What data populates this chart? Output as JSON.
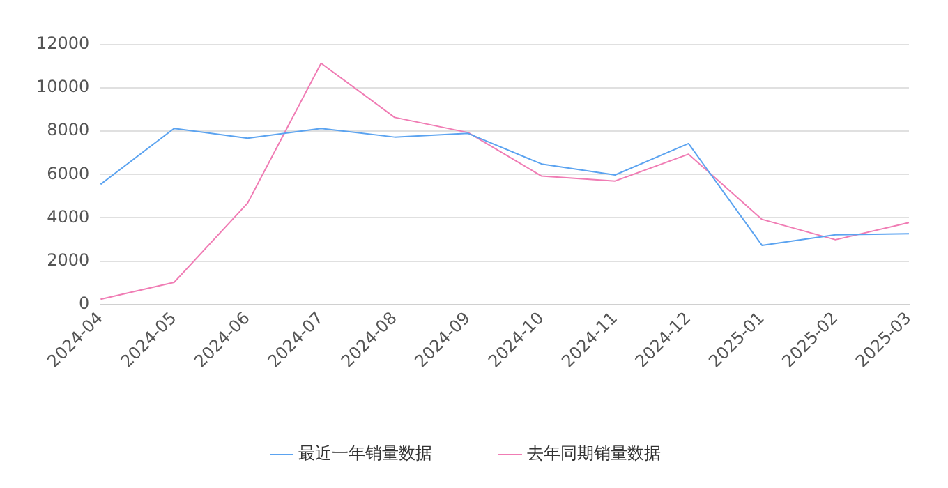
{
  "chart_data": {
    "type": "line",
    "categories": [
      "2024-04",
      "2024-05",
      "2024-06",
      "2024-07",
      "2024-08",
      "2024-09",
      "2024-10",
      "2024-11",
      "2024-12",
      "2025-01",
      "2025-02",
      "2025-03"
    ],
    "series": [
      {
        "name": "最近一年销量数据",
        "color": "#5ba3f0",
        "values": [
          5550,
          8130,
          7680,
          8130,
          7730,
          7900,
          6490,
          5980,
          7430,
          2730,
          3220,
          3270
        ]
      },
      {
        "name": "去年同期销量数据",
        "color": "#f07cb4",
        "values": [
          240,
          1020,
          4680,
          11140,
          8640,
          7940,
          5930,
          5700,
          6940,
          3930,
          2990,
          3780
        ]
      }
    ],
    "ylim": [
      0,
      12000
    ],
    "yticks": [
      0,
      2000,
      4000,
      6000,
      8000,
      10000,
      12000
    ],
    "grid": "y",
    "legend": "bottom",
    "marker": "none",
    "line_style": "solid"
  }
}
